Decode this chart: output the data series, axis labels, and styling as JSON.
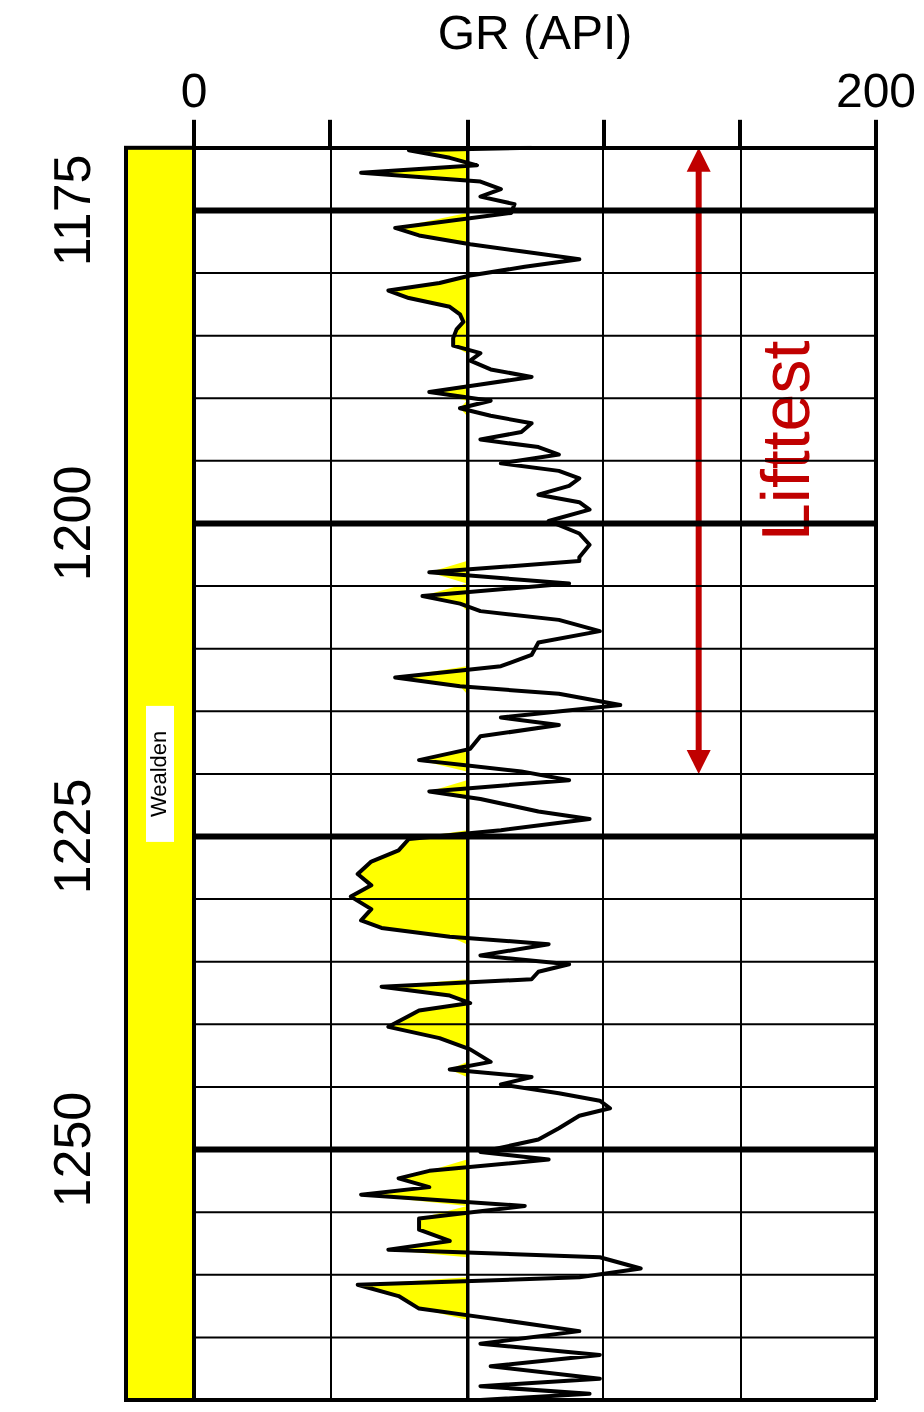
{
  "chart_data": {
    "type": "line",
    "xlabel": "GR (API)",
    "xlim": [
      0,
      200
    ],
    "xticks": [
      0,
      {
        "value": 40,
        "label": null
      },
      {
        "value": 80,
        "label": null
      },
      {
        "value": 120,
        "label": null
      },
      {
        "value": 160,
        "label": null
      },
      200
    ],
    "ylim": [
      1270,
      1170
    ],
    "yticks": [
      1175,
      {
        "value": 1180,
        "label": null
      },
      {
        "value": 1185,
        "label": null
      },
      {
        "value": 1190,
        "label": null
      },
      {
        "value": 1195,
        "label": null
      },
      1200,
      {
        "value": 1205,
        "label": null
      },
      {
        "value": 1210,
        "label": null
      },
      {
        "value": 1215,
        "label": null
      },
      {
        "value": 1220,
        "label": null
      },
      1225,
      {
        "value": 1230,
        "label": null
      },
      {
        "value": 1235,
        "label": null
      },
      {
        "value": 1240,
        "label": null
      },
      {
        "value": 1245,
        "label": null
      },
      1250,
      {
        "value": 1255,
        "label": null
      },
      {
        "value": 1260,
        "label": null
      },
      {
        "value": 1265,
        "label": null
      }
    ],
    "grid": true,
    "marker": "none",
    "line_style": "solid",
    "series": [
      {
        "color": "#000000",
        "x": [
          99,
          63,
          75,
          83,
          49,
          84,
          90,
          84,
          94,
          93,
          59,
          66,
          81,
          97,
          113,
          97,
          81,
          72,
          57,
          63,
          75,
          78,
          79,
          77,
          76,
          76,
          84,
          81,
          87,
          99,
          84,
          69,
          87,
          78,
          87,
          99,
          96,
          84,
          101,
          107,
          90,
          107,
          113,
          110,
          101,
          113,
          116,
          104,
          113,
          116,
          113,
          113,
          69,
          110,
          67,
          78,
          84,
          107,
          119,
          101,
          99,
          90,
          59,
          78,
          107,
          125,
          90,
          107,
          84,
          81,
          66,
          96,
          110,
          69,
          84,
          101,
          116,
          90,
          63,
          60,
          52,
          48,
          52,
          46,
          52,
          49,
          55,
          75,
          104,
          84,
          110,
          101,
          99,
          55,
          75,
          81,
          66,
          57,
          72,
          81,
          87,
          75,
          99,
          90,
          107,
          119,
          122,
          113,
          107,
          101,
          84,
          104,
          69,
          60,
          69,
          49,
          97,
          66,
          66,
          75,
          57,
          119,
          131,
          113,
          48,
          60,
          66,
          90,
          113,
          84,
          119,
          87,
          119,
          84,
          116,
          84
        ],
        "values": [
          1170.0,
          1170.2,
          1170.8,
          1171.4,
          1172.0,
          1172.7,
          1173.3,
          1173.9,
          1174.5,
          1175.2,
          1176.4,
          1177.0,
          1177.7,
          1178.3,
          1178.9,
          1179.5,
          1180.2,
          1180.8,
          1181.4,
          1182.0,
          1182.7,
          1183.3,
          1183.9,
          1184.5,
          1185.2,
          1185.8,
          1186.4,
          1187.0,
          1187.7,
          1188.3,
          1188.9,
          1189.5,
          1190.2,
          1190.8,
          1191.4,
          1192.0,
          1192.7,
          1193.3,
          1193.9,
          1194.5,
          1195.2,
          1195.8,
          1196.4,
          1197.0,
          1197.7,
          1198.3,
          1198.9,
          1199.8,
          1200.8,
          1201.7,
          1202.7,
          1203.0,
          1203.9,
          1204.8,
          1205.8,
          1206.4,
          1207.0,
          1207.7,
          1208.6,
          1209.5,
          1210.5,
          1211.4,
          1212.3,
          1213.0,
          1213.6,
          1214.5,
          1215.5,
          1216.1,
          1217.0,
          1218.0,
          1218.9,
          1219.8,
          1220.5,
          1221.4,
          1222.0,
          1223.0,
          1223.6,
          1224.5,
          1225.2,
          1226.1,
          1227.0,
          1228.0,
          1228.9,
          1229.8,
          1230.8,
          1231.7,
          1232.3,
          1233.0,
          1233.6,
          1234.5,
          1235.2,
          1235.8,
          1236.4,
          1237.0,
          1237.7,
          1238.3,
          1238.9,
          1240.2,
          1241.1,
          1242.0,
          1243.0,
          1243.6,
          1244.2,
          1244.8,
          1245.5,
          1246.1,
          1246.7,
          1247.3,
          1248.3,
          1249.2,
          1250.2,
          1250.8,
          1251.7,
          1252.3,
          1253.0,
          1253.6,
          1254.5,
          1255.5,
          1256.4,
          1257.3,
          1258.0,
          1258.6,
          1259.5,
          1260.2,
          1260.8,
          1261.7,
          1262.7,
          1263.6,
          1264.5,
          1265.5,
          1266.4,
          1267.3,
          1268.3,
          1268.9,
          1269.5,
          1270.0
        ]
      }
    ],
    "ref_lines": [
      {
        "axis": "x",
        "value": 80
      }
    ],
    "annotations": [
      "Wealden",
      "Lifttest"
    ]
  }
}
